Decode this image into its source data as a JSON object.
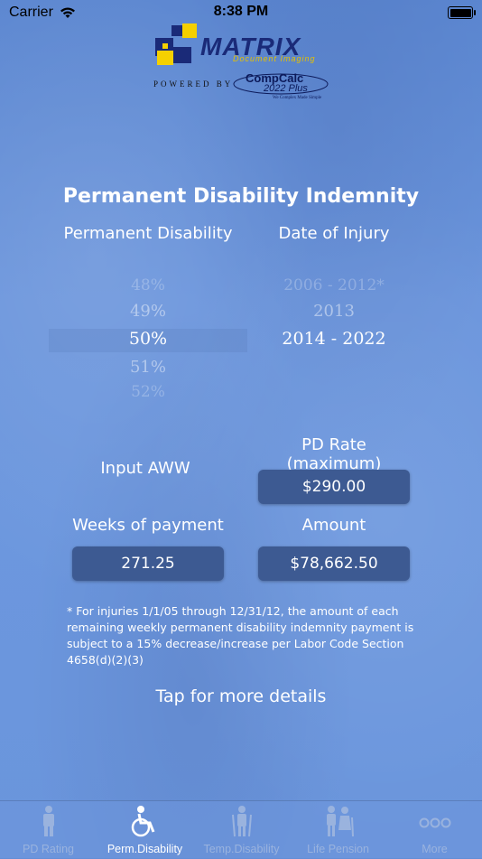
{
  "status_bar": {
    "carrier": "Carrier",
    "time": "8:38 PM",
    "icons": [
      "wifi-icon",
      "battery-icon"
    ]
  },
  "logo": {
    "brand": "MATRIX",
    "brand_sub": "Document Imaging",
    "powered_by": "POWERED BY",
    "partner": "CompCalc",
    "partner_version": "2022 Plus",
    "partner_tagline": "We Complex Made Simple"
  },
  "title": "Permanent Disability Indemnity",
  "columns": {
    "left": "Permanent Disability",
    "right": "Date of Injury"
  },
  "pd_picker": {
    "options": [
      "48%",
      "49%",
      "50%",
      "51%",
      "52%"
    ],
    "selected": "50%"
  },
  "doi_picker": {
    "options": [
      "2006 - 2012*",
      "2013",
      "2014 - 2022"
    ],
    "selected": "2014 - 2022"
  },
  "fields": {
    "input_aww_label": "Input AWW",
    "pd_rate_label": "PD Rate (maximum)",
    "pd_rate_value": "$290.00",
    "weeks_label": "Weeks of payment",
    "weeks_value": "271.25",
    "amount_label": "Amount",
    "amount_value": "$78,662.50"
  },
  "note": "* For injuries 1/1/05 through 12/31/12, the amount of each remaining weekly permanent disability indemnity payment is subject to a 15% decrease/increase per Labor Code Section 4658(d)(2)(3)",
  "more_details": "Tap for more details",
  "tabs": [
    {
      "label": "PD Rating",
      "icon": "standing-person-icon",
      "active": false
    },
    {
      "label": "Perm.Disability",
      "icon": "wheelchair-icon",
      "active": true
    },
    {
      "label": "Temp.Disability",
      "icon": "crutches-icon",
      "active": false
    },
    {
      "label": "Life Pension",
      "icon": "elderly-couple-icon",
      "active": false
    },
    {
      "label": "More",
      "icon": "more-dots-icon",
      "active": false
    }
  ],
  "colors": {
    "background": "#6a95dc",
    "value_box": "#3d5a92",
    "logo_navy": "#1a2a78",
    "logo_yellow": "#f5d000"
  }
}
